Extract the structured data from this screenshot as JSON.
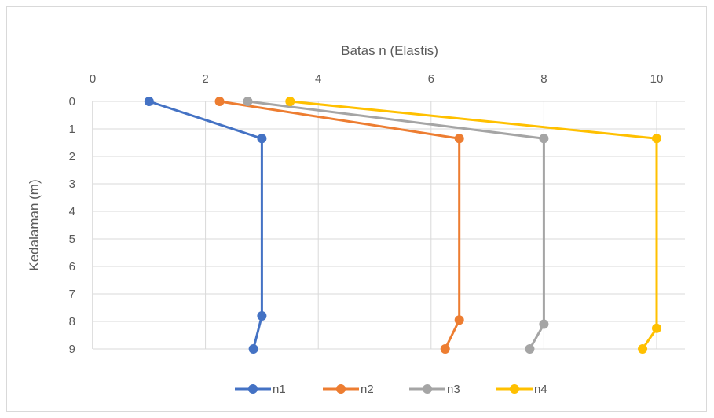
{
  "chart_data": {
    "type": "line",
    "title": "",
    "xlabel": "Batas n (Elastis)",
    "ylabel": "Kedalaman (m)",
    "x_axis_position": "top",
    "y_axis_inverted": true,
    "xlim": [
      0,
      10
    ],
    "ylim": [
      0,
      9
    ],
    "x_ticks": [
      "0",
      "2",
      "4",
      "6",
      "8",
      "10"
    ],
    "y_ticks": [
      "0",
      "1",
      "2",
      "3",
      "4",
      "5",
      "6",
      "7",
      "8",
      "9"
    ],
    "grid": true,
    "legend_position": "bottom",
    "series": [
      {
        "name": "n1",
        "color": "#4472C4",
        "points": [
          [
            1.0,
            0
          ],
          [
            3.0,
            1.35
          ],
          [
            3.0,
            7.8
          ],
          [
            2.85,
            9
          ]
        ]
      },
      {
        "name": "n2",
        "color": "#ED7D31",
        "points": [
          [
            2.25,
            0
          ],
          [
            6.5,
            1.35
          ],
          [
            6.5,
            7.95
          ],
          [
            6.25,
            9
          ]
        ]
      },
      {
        "name": "n3",
        "color": "#A5A5A5",
        "points": [
          [
            2.75,
            0
          ],
          [
            8.0,
            1.35
          ],
          [
            8.0,
            8.1
          ],
          [
            7.75,
            9
          ]
        ]
      },
      {
        "name": "n4",
        "color": "#FFC000",
        "points": [
          [
            3.5,
            0
          ],
          [
            10.0,
            1.35
          ],
          [
            10.0,
            8.25
          ],
          [
            9.75,
            9
          ]
        ]
      }
    ]
  }
}
